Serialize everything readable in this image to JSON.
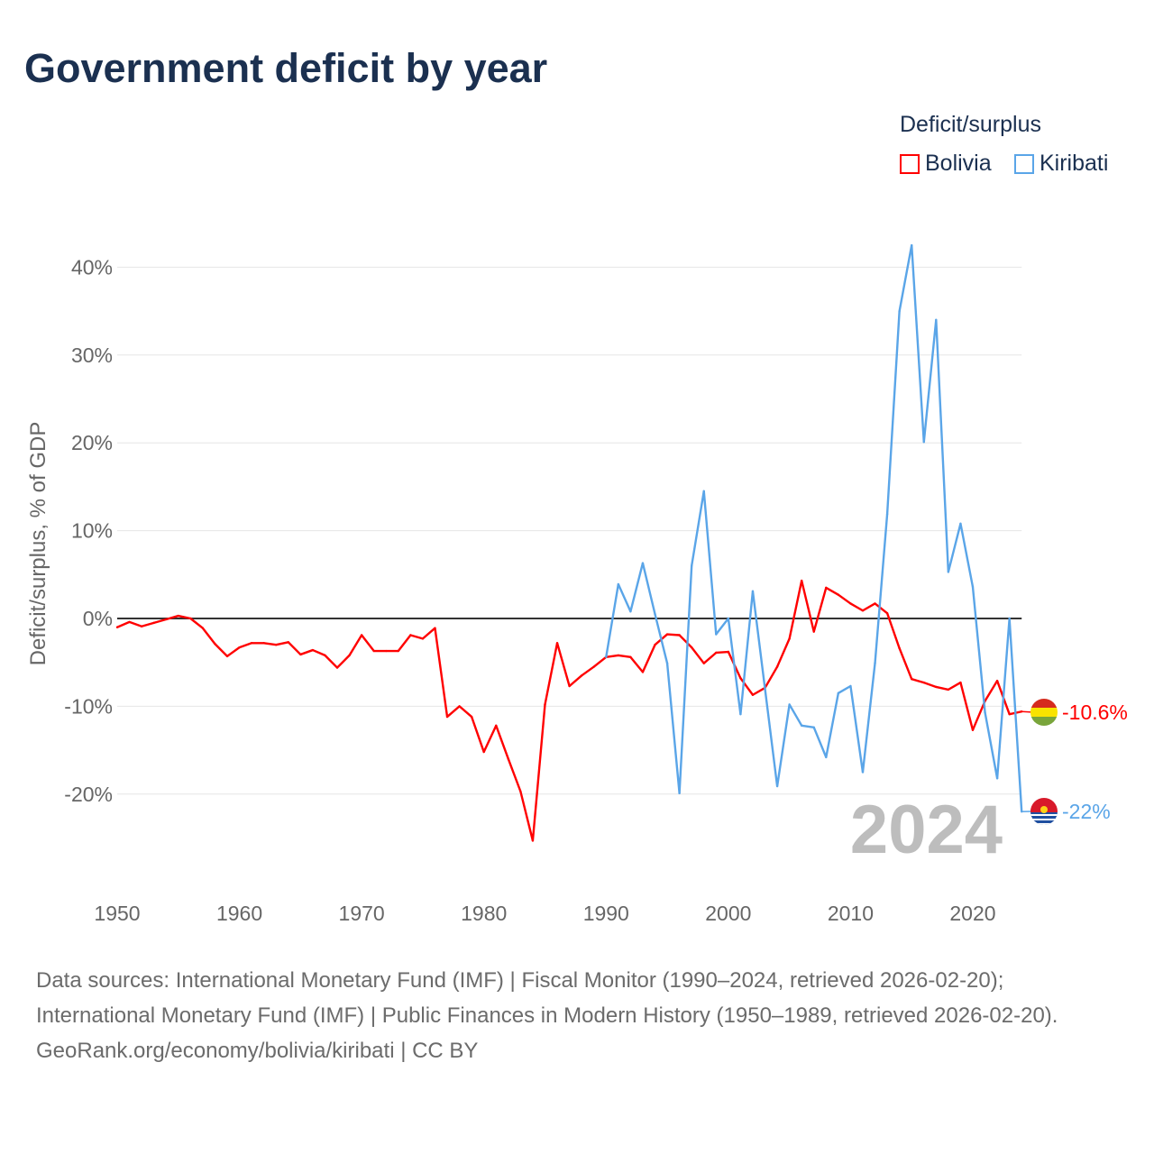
{
  "title": "Government deficit by year",
  "legend": {
    "title": "Deficit/surplus",
    "items": [
      {
        "label": "Bolivia",
        "color": "#ff0000"
      },
      {
        "label": "Kiribati",
        "color": "#5aa5e8"
      }
    ]
  },
  "chart_data": {
    "type": "line",
    "title": "Government deficit by year",
    "xlabel": "",
    "ylabel": "Deficit/surplus, % of GDP",
    "xlim": [
      1950,
      2024
    ],
    "ylim": [
      -27,
      43
    ],
    "x_ticks": [
      "1950",
      "1960",
      "1970",
      "1980",
      "1990",
      "2000",
      "2010",
      "2020"
    ],
    "y_ticks": [
      {
        "value": 40,
        "label": "40%"
      },
      {
        "value": 30,
        "label": "30%"
      },
      {
        "value": 20,
        "label": "20%"
      },
      {
        "value": 10,
        "label": "10%"
      },
      {
        "value": 0,
        "label": "0%"
      },
      {
        "value": -10,
        "label": "-10%"
      },
      {
        "value": -20,
        "label": "-20%"
      }
    ],
    "grid": true,
    "current_year_label": "2024",
    "series": [
      {
        "name": "Bolivia",
        "color": "#ff0000",
        "end_label": "-10.6%",
        "start_year": 1950,
        "values": [
          -1.0,
          -0.4,
          -0.9,
          -0.5,
          -0.1,
          0.3,
          0.0,
          -1.1,
          -2.9,
          -4.3,
          -3.3,
          -2.8,
          -2.8,
          -3.0,
          -2.7,
          -4.1,
          -3.6,
          -4.2,
          -5.6,
          -4.2,
          -1.9,
          -3.7,
          -3.7,
          -3.7,
          -1.9,
          -2.3,
          -1.1,
          -11.2,
          -10.0,
          -11.2,
          -15.2,
          -12.2,
          -16.0,
          -19.7,
          -25.3,
          -9.8,
          -2.8,
          -7.7,
          -6.5,
          -5.5,
          -4.4,
          -4.2,
          -4.4,
          -6.1,
          -3.0,
          -1.8,
          -1.9,
          -3.3,
          -5.1,
          -3.9,
          -3.8,
          -6.8,
          -8.7,
          -7.9,
          -5.5,
          -2.3,
          4.3,
          -1.5,
          3.5,
          2.7,
          1.7,
          0.9,
          1.7,
          0.6,
          -3.4,
          -6.9,
          -7.3,
          -7.8,
          -8.1,
          -7.3,
          -12.7,
          -9.4,
          -7.1,
          -10.9,
          -10.6
        ]
      },
      {
        "name": "Kiribati",
        "color": "#5aa5e8",
        "end_label": "-22%",
        "start_year": 1990,
        "values": [
          -4.4,
          3.9,
          0.8,
          6.3,
          0.5,
          -5.1,
          -19.9,
          6.0,
          14.5,
          -1.8,
          0.0,
          -10.9,
          3.1,
          -8.0,
          -19.1,
          -9.8,
          -12.2,
          -12.4,
          -15.8,
          -8.5,
          -7.7,
          -17.5,
          -5.1,
          11.9,
          35.0,
          42.5,
          20.1,
          34.0,
          5.3,
          10.8,
          3.6,
          -10.7,
          -18.2,
          0.0,
          -22.0
        ]
      }
    ]
  },
  "footer": {
    "sources": "Data sources: International Monetary Fund (IMF) | Fiscal Monitor (1990–2024, retrieved 2026-02-20); International Monetary Fund (IMF) | Public Finances in Modern History (1950–1989, retrieved 2026-02-20).",
    "credit": "GeoRank.org/economy/bolivia/kiribati | CC BY"
  }
}
